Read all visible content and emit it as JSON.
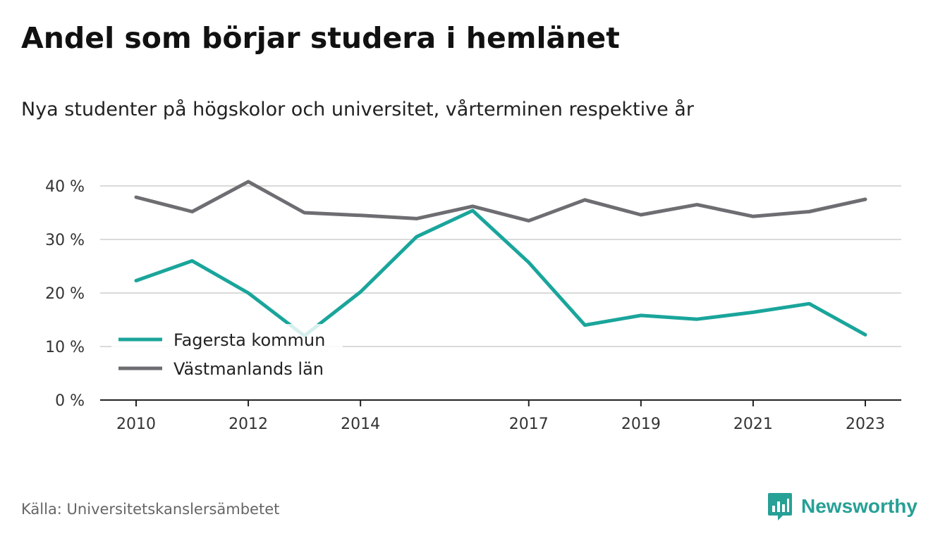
{
  "header": {
    "title": "Andel som börjar studera i hemlänet",
    "subtitle": "Nya studenter på högskolor och universitet, vårterminen respektive år"
  },
  "footer": {
    "source": "Källa: Universitetskanslersämbetet",
    "brand": "Newsworthy",
    "brand_icon": "bar-chart-speech-bubble-icon",
    "brand_color": "#27a096"
  },
  "chart_data": {
    "type": "line",
    "x": [
      2010,
      2011,
      2012,
      2013,
      2014,
      2015,
      2016,
      2017,
      2018,
      2019,
      2020,
      2021,
      2022,
      2023
    ],
    "x_ticks": [
      "2010",
      "2012",
      "2014",
      "2017",
      "2019",
      "2021",
      "2023"
    ],
    "y_ticks": [
      "0 %",
      "10 %",
      "20 %",
      "30 %",
      "40 %"
    ],
    "ylim": [
      0,
      40
    ],
    "grid": true,
    "legend_position": "bottom-left",
    "series": [
      {
        "name": "Fagersta kommun",
        "color": "#1aa59b",
        "values": [
          22.3,
          26.0,
          20.0,
          12.0,
          20.2,
          30.5,
          35.4,
          25.7,
          14.0,
          15.8,
          15.1,
          16.4,
          18.0,
          12.2
        ]
      },
      {
        "name": "Västmanlands län",
        "color": "#6e6d72",
        "values": [
          37.9,
          35.2,
          40.8,
          35.0,
          34.5,
          33.9,
          36.2,
          33.5,
          37.4,
          34.6,
          36.5,
          34.3,
          35.2,
          37.5
        ]
      }
    ]
  }
}
